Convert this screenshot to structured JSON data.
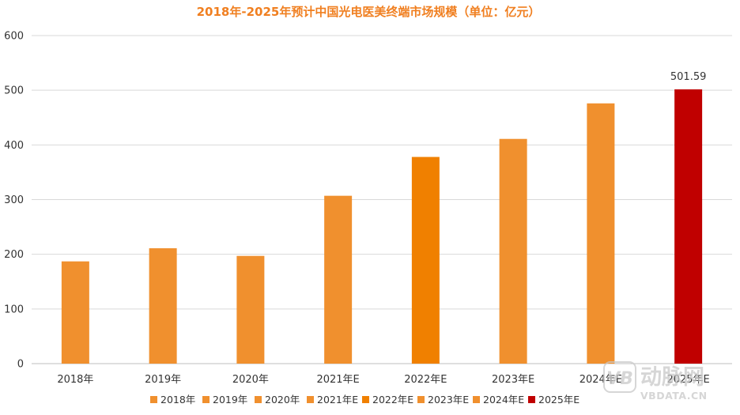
{
  "chart_data": {
    "type": "bar",
    "title": "2018年-2025年预计中国光电医美终端市场规模（单位：亿元）",
    "categories": [
      "2018年",
      "2019年",
      "2020年",
      "2021年E",
      "2022年E",
      "2023年E",
      "2024年E",
      "2025年E"
    ],
    "values": [
      187,
      211,
      197,
      307,
      378,
      411,
      476,
      501.59
    ],
    "colors": [
      "#f0902e",
      "#f0902e",
      "#f0902e",
      "#f0902e",
      "#f08000",
      "#f0902e",
      "#f0902e",
      "#c00000"
    ],
    "data_labels": [
      {
        "index": 7,
        "text": "501.59"
      }
    ],
    "ylim": [
      0,
      600
    ],
    "yticks": [
      "0",
      "100",
      "200",
      "300",
      "400",
      "500",
      "600"
    ],
    "grid": true,
    "legend_position": "bottom",
    "title_color": "#f07f20"
  },
  "watermark": {
    "logo": "VB",
    "brand": "动脉网",
    "site": "VBDATA.CN"
  }
}
